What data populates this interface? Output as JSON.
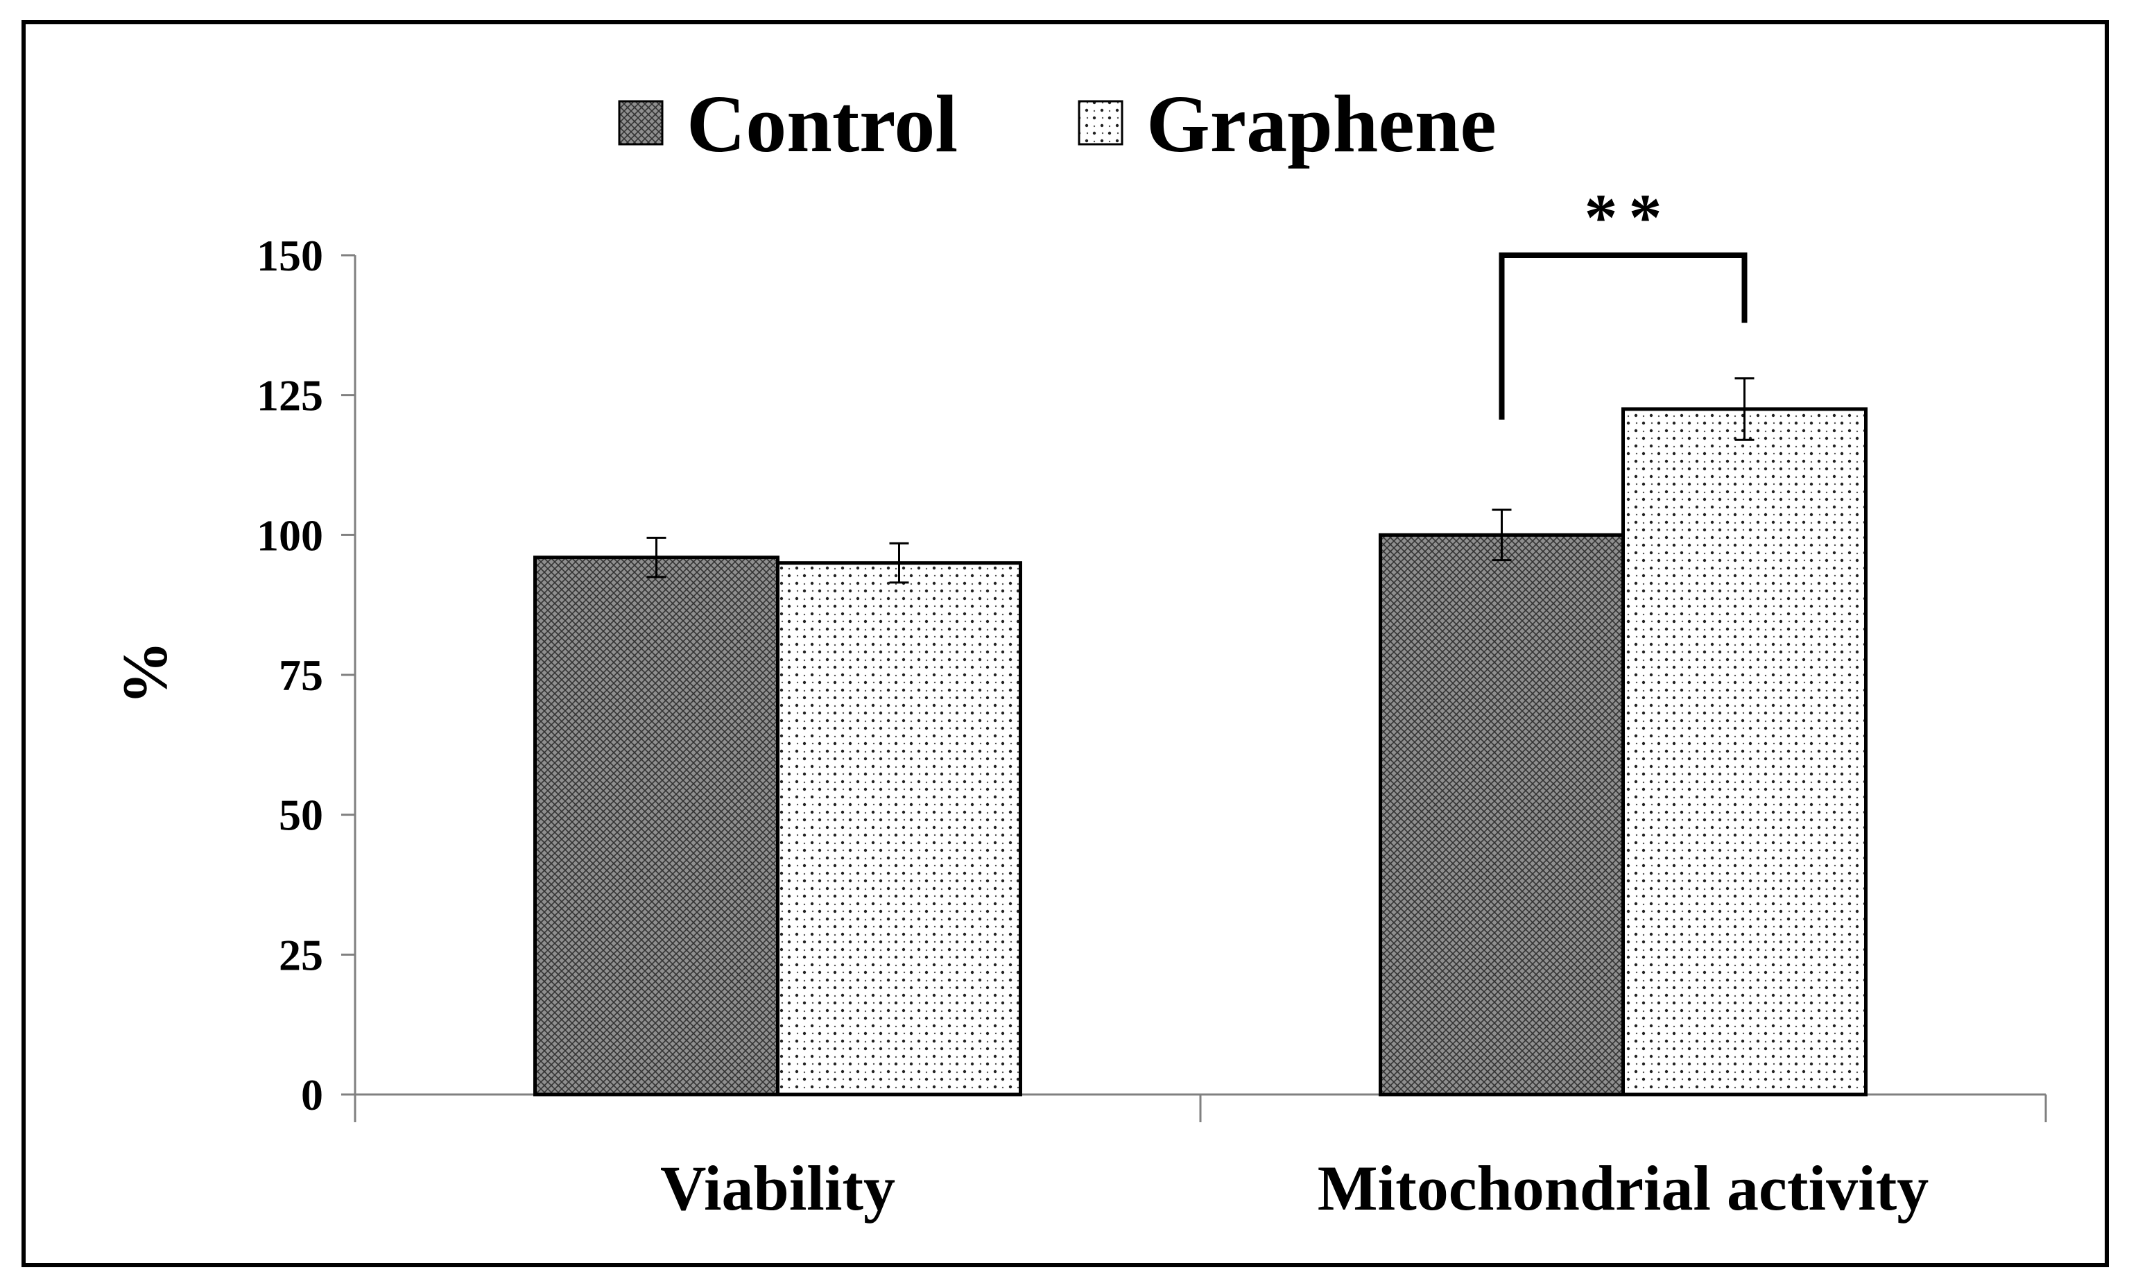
{
  "chart_data": {
    "type": "bar",
    "title": "",
    "xlabel": "",
    "ylabel": "%",
    "ylim": [
      0,
      150
    ],
    "yticks": [
      0,
      25,
      50,
      75,
      100,
      125,
      150
    ],
    "categories": [
      "Viability",
      "Mitochondrial activity"
    ],
    "series": [
      {
        "name": "Control",
        "values": [
          96,
          100
        ],
        "errors": [
          3.5,
          4.5
        ],
        "pattern": "crosshatch"
      },
      {
        "name": "Graphene",
        "values": [
          95,
          122.5
        ],
        "errors": [
          3.5,
          5.5
        ],
        "pattern": "dotted"
      }
    ],
    "legend_position": "top-center",
    "grid": false,
    "annotations": [
      {
        "text": "**",
        "category": "Mitochondrial activity",
        "between": [
          "Control",
          "Graphene"
        ]
      }
    ]
  }
}
